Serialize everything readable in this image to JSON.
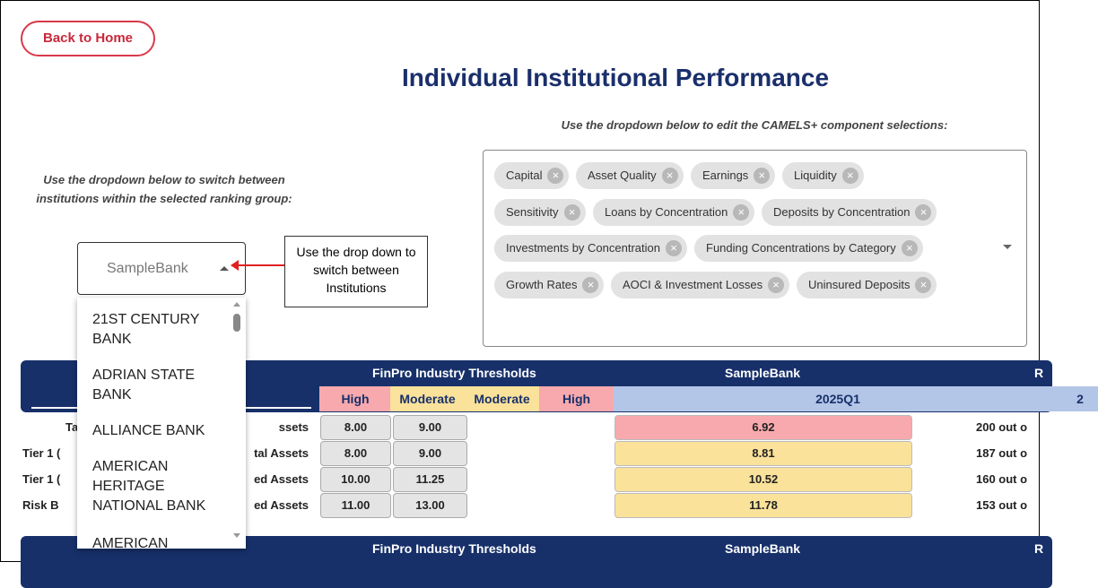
{
  "header": {
    "back_button": "Back to Home",
    "title": "Individual Institutional Performance"
  },
  "components": {
    "instruction": "Use the dropdown below to edit the CAMELS+ component selections:",
    "tags": [
      "Capital",
      "Asset Quality",
      "Earnings",
      "Liquidity",
      "Sensitivity",
      "Loans by Concentration",
      "Deposits by Concentration",
      "Investments by Concentration",
      "Funding Concentrations by Category",
      "Growth Rates",
      "AOCI & Investment Losses",
      "Uninsured Deposits"
    ]
  },
  "institution": {
    "instruction": "Use the dropdown below to switch between institutions within the selected ranking group:",
    "selected": "SampleBank",
    "options": [
      "21ST CENTURY BANK",
      "ADRIAN STATE BANK",
      "ALLIANCE BANK",
      "AMERICAN HERITAGE NATIONAL BANK",
      "AMERICAN"
    ]
  },
  "callout": "Use the drop down to switch between Institutions",
  "table": {
    "header": [
      "FinPro Industry Thresholds",
      "SampleBank",
      "R"
    ],
    "subheader": [
      "High",
      "Moderate",
      "Moderate",
      "High",
      "2025Q1",
      "2"
    ],
    "rows": [
      {
        "label_left": "Ta",
        "label_right": "ssets",
        "high": "8.00",
        "moderate": "9.00",
        "value": "6.92",
        "rank": "200 out o"
      },
      {
        "label_left": "Tier 1 (",
        "label_right": "tal Assets",
        "high": "8.00",
        "moderate": "9.00",
        "value": "8.81",
        "rank": "187 out o"
      },
      {
        "label_left": "Tier 1 (",
        "label_right": "ed Assets",
        "high": "10.00",
        "moderate": "11.25",
        "value": "10.52",
        "rank": "160 out o"
      },
      {
        "label_left": "Risk B",
        "label_right": "ed Assets",
        "high": "11.00",
        "moderate": "13.00",
        "value": "11.78",
        "rank": "153 out o"
      }
    ],
    "footer_header": [
      "FinPro Industry Thresholds",
      "SampleBank",
      "R"
    ]
  }
}
